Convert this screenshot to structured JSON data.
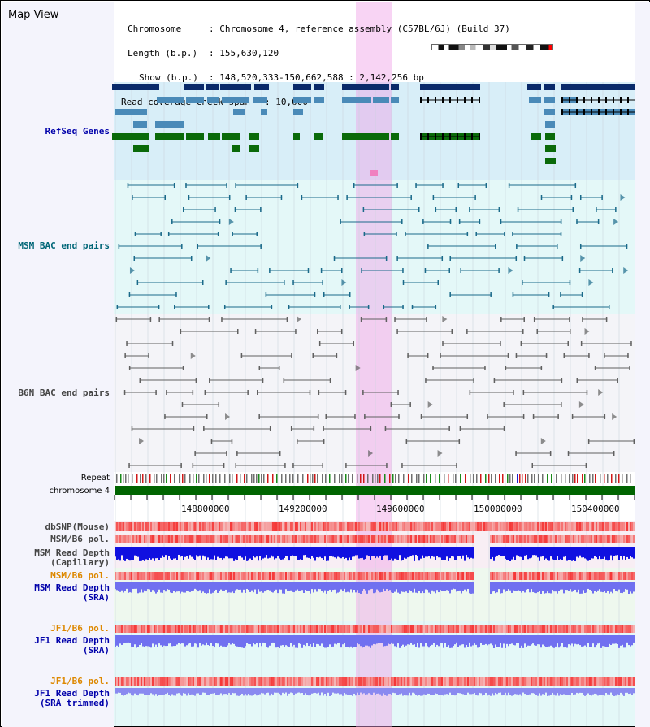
{
  "view": {
    "title": "Map View"
  },
  "info": {
    "chromosome_key": "Chromosome",
    "chromosome_value": ": Chromosome 4, reference assembly (C57BL/6J) (Build 37)",
    "length_key": "Length (b.p.)",
    "length_value": ": 155,630,120",
    "show_key": "Show (b.p.)",
    "show_value": ": 148,520,333-150,662,588 : 2,142,256 bp",
    "coverage_key": "Read coverage check span",
    "coverage_value": ": 10,000"
  },
  "tracks": {
    "refseq": "RefSeq Genes",
    "msm_bac": "MSM BAC end pairs",
    "b6n_bac": "B6N BAC end pairs",
    "repeat": "Repeat",
    "chromosome": "chromosome 4",
    "dbsnp": "dbSNP(Mouse)",
    "msm_b6_pol_1": "MSM/B6 pol.",
    "msm_read_depth_cap_1": "MSM Read Depth",
    "msm_read_depth_cap_2": "(Capillary)",
    "msm_b6_pol_2": "MSM/B6 pol.",
    "msm_read_depth_sra_1": "MSM Read Depth",
    "msm_read_depth_sra_2": "(SRA)",
    "jf1_b6_pol_1": "JF1/B6 pol.",
    "jf1_read_depth_sra_1": "JF1 Read Depth",
    "jf1_read_depth_sra_2": "(SRA)",
    "jf1_b6_pol_2": "JF1/B6 pol.",
    "jf1_read_depth_trim_1": "JF1 Read Depth",
    "jf1_read_depth_trim_2": "(SRA trimmed)"
  },
  "axis": {
    "ticks": [
      "148800000",
      "149200000",
      "149600000",
      "150000000",
      "150400000"
    ]
  },
  "colors": {
    "navy": "#0a2a6a",
    "steel": "#4a8ab8",
    "green": "#0a6a0a",
    "teal": "#1a6a8a",
    "grey": "#606060",
    "pol_red": "#f04040",
    "depth_blue": "#1010e0",
    "depth_lavender": "#7070f0",
    "label_blue": "#0000aa",
    "label_teal": "#006677",
    "label_orange": "#dd8800"
  }
}
